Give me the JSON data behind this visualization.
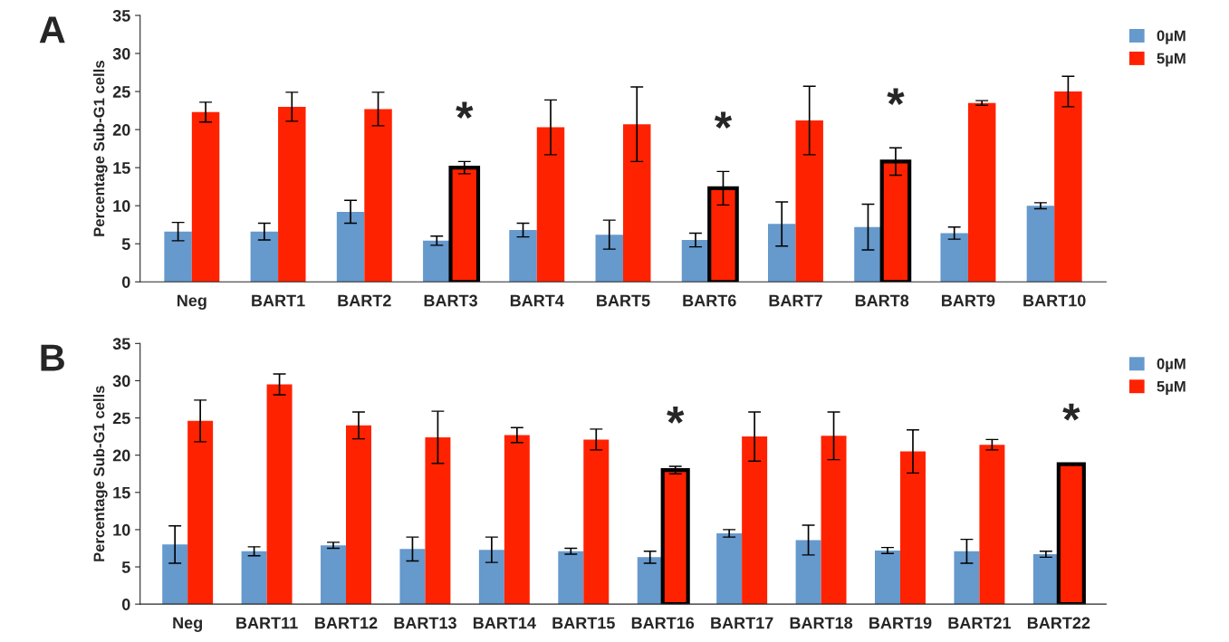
{
  "chart_data": [
    {
      "type": "bar",
      "title": "A",
      "ylabel": "Percentage Sub-G1 cells",
      "categories": [
        "Neg",
        "BART1",
        "BART2",
        "BART3",
        "BART4",
        "BART5",
        "BART6",
        "BART7",
        "BART8",
        "BART9",
        "BART10"
      ],
      "series": [
        {
          "name": "0µM",
          "color": "#6699cc",
          "values": [
            6.6,
            6.6,
            9.2,
            5.4,
            6.8,
            6.2,
            5.5,
            7.6,
            7.2,
            6.4,
            10.0
          ],
          "errors": [
            1.2,
            1.1,
            1.5,
            0.6,
            0.9,
            1.9,
            0.9,
            2.9,
            3.0,
            0.8,
            0.4
          ]
        },
        {
          "name": "5µM",
          "color": "#ff2200",
          "values": [
            22.3,
            23.0,
            22.7,
            15.0,
            20.3,
            20.7,
            12.3,
            21.2,
            15.8,
            23.5,
            25.0
          ],
          "errors": [
            1.3,
            1.9,
            2.2,
            0.8,
            3.6,
            4.9,
            2.2,
            4.5,
            1.8,
            0.3,
            2.0
          ]
        }
      ],
      "ylim": [
        0,
        35
      ],
      "yticks": [
        0,
        5,
        10,
        15,
        20,
        25,
        30,
        35
      ],
      "legend": "top right",
      "annotations": [
        {
          "text": "*",
          "x": "BART3",
          "y": 15.0
        },
        {
          "text": "*",
          "x": "BART6",
          "y": 12.3
        },
        {
          "text": "*",
          "x": "BART8",
          "y": 15.8
        }
      ]
    },
    {
      "type": "bar",
      "title": "B",
      "ylabel": "Percentage Sub-G1 cells",
      "categories": [
        "Neg",
        "BART11",
        "BART12",
        "BART13",
        "BART14",
        "BART15",
        "BART16",
        "BART17",
        "BART18",
        "BART19",
        "BART21",
        "BART22"
      ],
      "series": [
        {
          "name": "0µM",
          "color": "#6699cc",
          "values": [
            8.0,
            7.1,
            7.9,
            7.4,
            7.3,
            7.1,
            6.3,
            9.5,
            8.6,
            7.2,
            7.1,
            6.7
          ],
          "errors": [
            2.5,
            0.6,
            0.4,
            1.6,
            1.7,
            0.4,
            0.8,
            0.5,
            2.0,
            0.4,
            1.6,
            0.4
          ]
        },
        {
          "name": "5µM",
          "color": "#ff2200",
          "values": [
            24.6,
            29.5,
            24.0,
            22.4,
            22.7,
            22.1,
            18.0,
            22.5,
            22.6,
            20.5,
            21.4,
            18.8
          ],
          "errors": [
            2.8,
            1.4,
            1.8,
            3.5,
            1.0,
            1.4,
            0.5,
            3.3,
            3.2,
            2.9,
            0.7,
            0.1
          ]
        }
      ],
      "ylim": [
        0,
        35
      ],
      "yticks": [
        0,
        5,
        10,
        15,
        20,
        25,
        30,
        35
      ],
      "legend": "top right",
      "annotations": [
        {
          "text": "*",
          "x": "BART16",
          "y": 18.0
        },
        {
          "text": "*",
          "x": "BART22",
          "y": 18.8
        }
      ]
    }
  ]
}
